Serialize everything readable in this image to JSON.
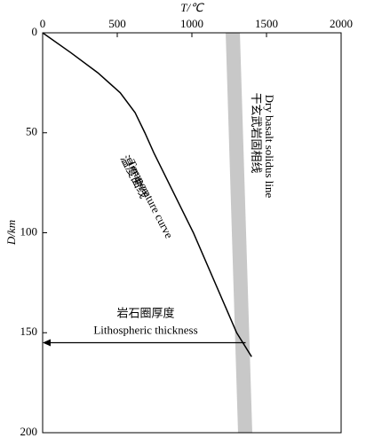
{
  "chart_data": {
    "type": "line",
    "x_label": "T/℃",
    "y_label": "D/km",
    "xlim": [
      0,
      2000
    ],
    "xticks": [
      0,
      500,
      1000,
      1500,
      2000
    ],
    "ylim": [
      0,
      200
    ],
    "yticks": [
      0,
      50,
      100,
      150,
      200
    ],
    "y_inverted": true,
    "x_axis_position": "top",
    "series": [
      {
        "name": "Temperature curve",
        "label_cn": "温度曲线",
        "color": "#000000",
        "width": 1.5,
        "x": [
          0,
          190,
          370,
          520,
          620,
          685,
          745,
          1010,
          1300,
          1400
        ],
        "values": [
          0,
          10,
          20,
          30,
          40,
          50,
          60,
          100,
          150,
          162
        ]
      },
      {
        "name": "Dry basalt solidus line",
        "label_cn": "干玄武岩固相线",
        "color": "#c8c8c8",
        "width": 16,
        "x": [
          1274,
          1357
        ],
        "values": [
          0,
          200
        ]
      }
    ],
    "annotation": {
      "text_cn": "岩石圈厚度",
      "text": "Lithospheric thickness",
      "depth": 155,
      "x_from": 1360,
      "x_to": 0
    }
  }
}
